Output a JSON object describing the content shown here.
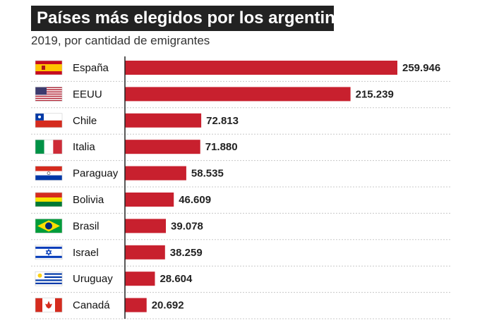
{
  "chart_data": {
    "type": "bar",
    "orientation": "horizontal",
    "title": "Países más elegidos por los argentinos",
    "subtitle": "2019, por cantidad de emigrantes",
    "categories": [
      "España",
      "EEUU",
      "Chile",
      "Italia",
      "Paraguay",
      "Bolivia",
      "Brasil",
      "Israel",
      "Uruguay",
      "Canadá"
    ],
    "values": [
      259946,
      215239,
      72813,
      71880,
      58535,
      46609,
      39078,
      38259,
      28604,
      20692
    ],
    "value_labels": [
      "259.946",
      "215.239",
      "72.813",
      "71.880",
      "58.535",
      "46.609",
      "39.078",
      "38.259",
      "28.604",
      "20.692"
    ],
    "flags": [
      "spain-flag-icon",
      "usa-flag-icon",
      "chile-flag-icon",
      "italy-flag-icon",
      "paraguay-flag-icon",
      "bolivia-flag-icon",
      "brazil-flag-icon",
      "israel-flag-icon",
      "uruguay-flag-icon",
      "canada-flag-icon"
    ],
    "xlim": [
      0,
      259946
    ],
    "bar_color": "#c8202e",
    "grid": "dashed horizontal separators between rows",
    "legend": "none"
  }
}
